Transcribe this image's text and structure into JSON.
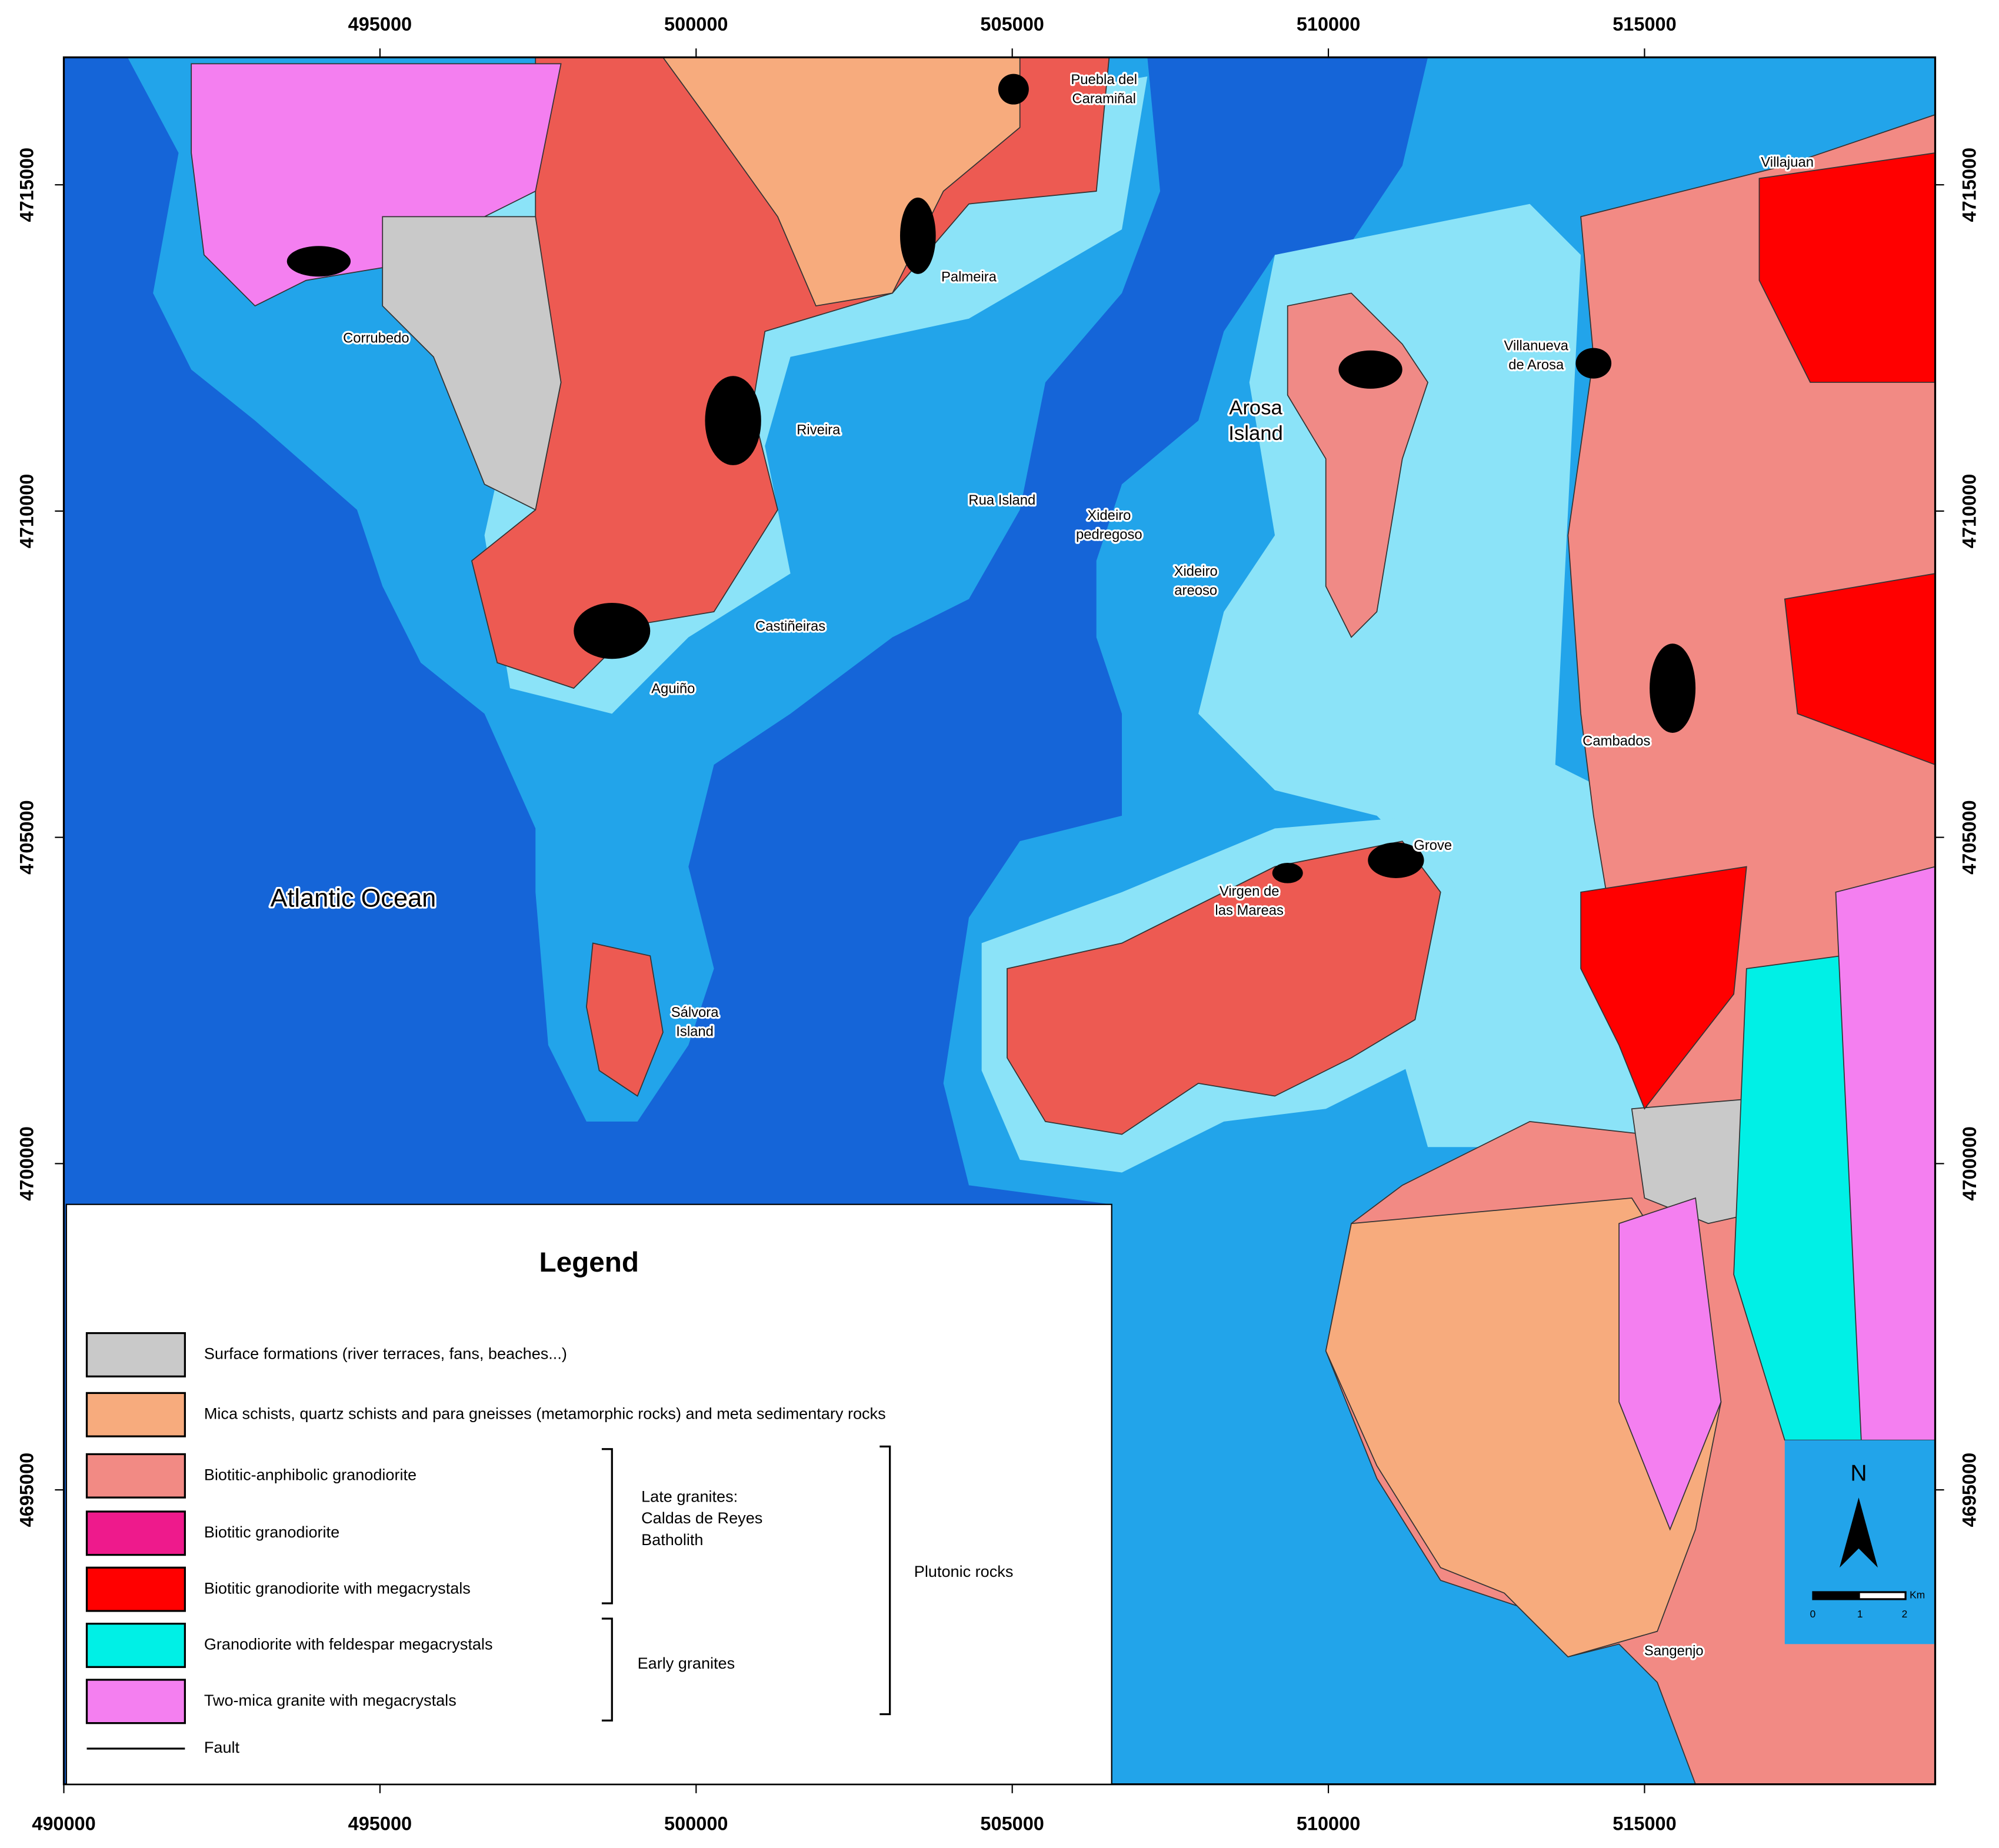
{
  "axes": {
    "x_ticks_top": [
      495000,
      500000,
      505000,
      510000,
      515000
    ],
    "x_ticks_bottom": [
      490000,
      495000,
      500000,
      505000,
      510000,
      515000
    ],
    "y_ticks": [
      4715000,
      4710000,
      4705000,
      4700000,
      4695000
    ]
  },
  "places": [
    {
      "lines": [
        "Puebla del",
        "Caramiñal"
      ]
    },
    {
      "lines": [
        "Palmeira"
      ]
    },
    {
      "lines": [
        "Corrubedo"
      ]
    },
    {
      "lines": [
        "Riveira"
      ]
    },
    {
      "lines": [
        "Rua Island"
      ]
    },
    {
      "lines": [
        "Xideiro",
        "pedregoso"
      ]
    },
    {
      "lines": [
        "Xideiro",
        "areoso"
      ]
    },
    {
      "lines": [
        "Arosa",
        "Island"
      ]
    },
    {
      "lines": [
        "Villanueva",
        "de Arosa"
      ]
    },
    {
      "lines": [
        "Villajuan"
      ]
    },
    {
      "lines": [
        "Castiñeiras"
      ]
    },
    {
      "lines": [
        "Aguiño"
      ]
    },
    {
      "lines": [
        "Cambados"
      ]
    },
    {
      "lines": [
        "Grove"
      ]
    },
    {
      "lines": [
        "Virgen de",
        "las Mareas"
      ]
    },
    {
      "lines": [
        "Sálvora",
        "Island"
      ]
    },
    {
      "lines": [
        "Atlantic Ocean"
      ]
    },
    {
      "lines": [
        "Sangenjo"
      ]
    }
  ],
  "legend": {
    "title": "Legend",
    "entries": [
      {
        "label": "Surface formations (river terraces, fans, beaches...)",
        "color": "#c9c9c9"
      },
      {
        "label": "Mica schists, quartz schists and para gneisses (metamorphic rocks) and meta sedimentary rocks",
        "color": "#f7ab7d"
      },
      {
        "label": "Biotitic-anphibolic granodiorite",
        "color": "#f28a84"
      },
      {
        "label": "Biotitic granodiorite",
        "color": "#ee1a8c"
      },
      {
        "label": "Biotitic granodiorite with megacrystals",
        "color": "#ff0000"
      },
      {
        "label": "Granodiorite with feldespar megacrystals",
        "color": "#00f0e6"
      },
      {
        "label": "Two-mica granite with megacrystals",
        "color": "#f47ff0"
      }
    ],
    "fault": {
      "label": "Fault"
    },
    "groups": {
      "late": [
        "Late granites:",
        "Caldas de Reyes",
        "Batholith"
      ],
      "early": "Early granites",
      "plutonic": "Plutonic rocks"
    }
  },
  "scale_bar": {
    "north": "N",
    "ticks": [
      0,
      1,
      2
    ],
    "unit": "Km"
  }
}
